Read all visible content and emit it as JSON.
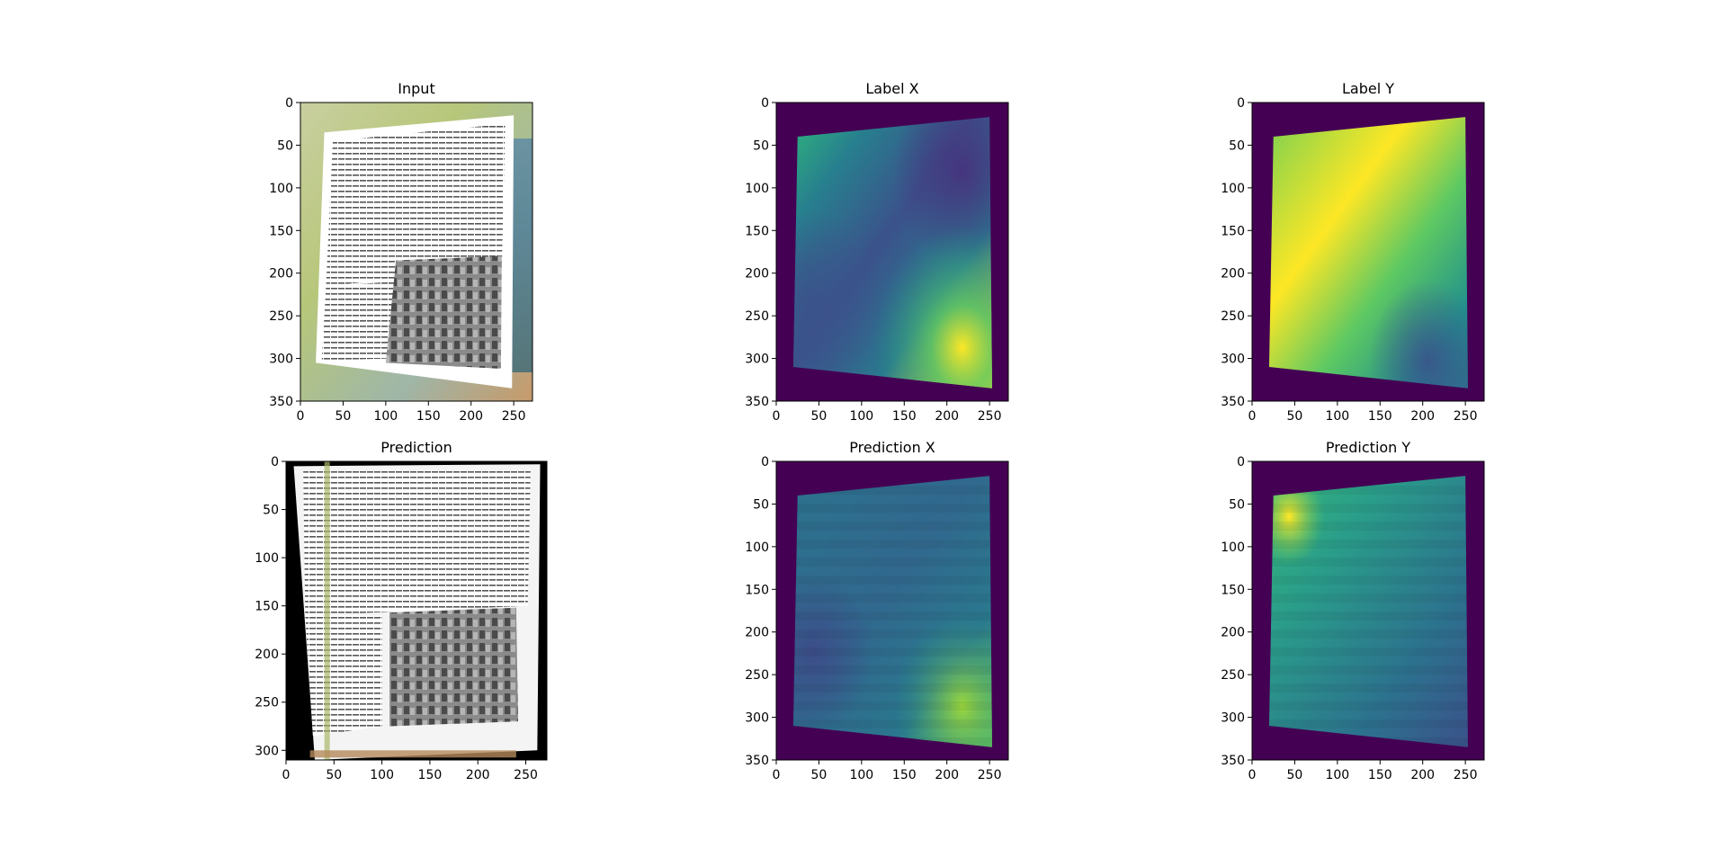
{
  "chart_data": [
    {
      "type": "heatmap",
      "title": "Input",
      "content": "photo",
      "xlim": [
        0,
        272
      ],
      "ylim": [
        350,
        0
      ],
      "xticks": [
        "0",
        "50",
        "100",
        "150",
        "200",
        "250"
      ],
      "yticks": [
        "0",
        "50",
        "100",
        "150",
        "200",
        "250",
        "300",
        "350"
      ]
    },
    {
      "type": "heatmap",
      "title": "Label X",
      "colormap": "viridis",
      "xlim": [
        0,
        272
      ],
      "ylim": [
        350,
        0
      ],
      "xticks": [
        "0",
        "50",
        "100",
        "150",
        "200",
        "250"
      ],
      "yticks": [
        "0",
        "50",
        "100",
        "150",
        "200",
        "250",
        "300",
        "350"
      ],
      "page_quad": [
        [
          25,
          40
        ],
        [
          250,
          17
        ],
        [
          253,
          335
        ],
        [
          20,
          310
        ]
      ]
    },
    {
      "type": "heatmap",
      "title": "Label Y",
      "colormap": "viridis",
      "xlim": [
        0,
        272
      ],
      "ylim": [
        350,
        0
      ],
      "xticks": [
        "0",
        "50",
        "100",
        "150",
        "200",
        "250"
      ],
      "yticks": [
        "0",
        "50",
        "100",
        "150",
        "200",
        "250",
        "300",
        "350"
      ],
      "page_quad": [
        [
          25,
          40
        ],
        [
          250,
          17
        ],
        [
          253,
          335
        ],
        [
          20,
          310
        ]
      ]
    },
    {
      "type": "heatmap",
      "title": "Prediction",
      "content": "photo",
      "xlim": [
        0,
        272
      ],
      "ylim": [
        310,
        0
      ],
      "xticks": [
        "0",
        "50",
        "100",
        "150",
        "200",
        "250"
      ],
      "yticks": [
        "0",
        "50",
        "100",
        "150",
        "200",
        "250",
        "300"
      ]
    },
    {
      "type": "heatmap",
      "title": "Prediction X",
      "colormap": "viridis",
      "xlim": [
        0,
        272
      ],
      "ylim": [
        350,
        0
      ],
      "xticks": [
        "0",
        "50",
        "100",
        "150",
        "200",
        "250"
      ],
      "yticks": [
        "0",
        "50",
        "100",
        "150",
        "200",
        "250",
        "300",
        "350"
      ],
      "page_quad": [
        [
          25,
          40
        ],
        [
          250,
          17
        ],
        [
          253,
          335
        ],
        [
          20,
          310
        ]
      ]
    },
    {
      "type": "heatmap",
      "title": "Prediction Y",
      "colormap": "viridis",
      "xlim": [
        0,
        272
      ],
      "ylim": [
        350,
        0
      ],
      "xticks": [
        "0",
        "50",
        "100",
        "150",
        "200",
        "250"
      ],
      "yticks": [
        "0",
        "50",
        "100",
        "150",
        "200",
        "250",
        "300",
        "350"
      ],
      "page_quad": [
        [
          25,
          40
        ],
        [
          250,
          17
        ],
        [
          253,
          335
        ],
        [
          20,
          310
        ]
      ]
    }
  ],
  "colors": {
    "viridis_dark": "#440154",
    "viridis_mid": "#21918c",
    "viridis_bright": "#fde725"
  }
}
